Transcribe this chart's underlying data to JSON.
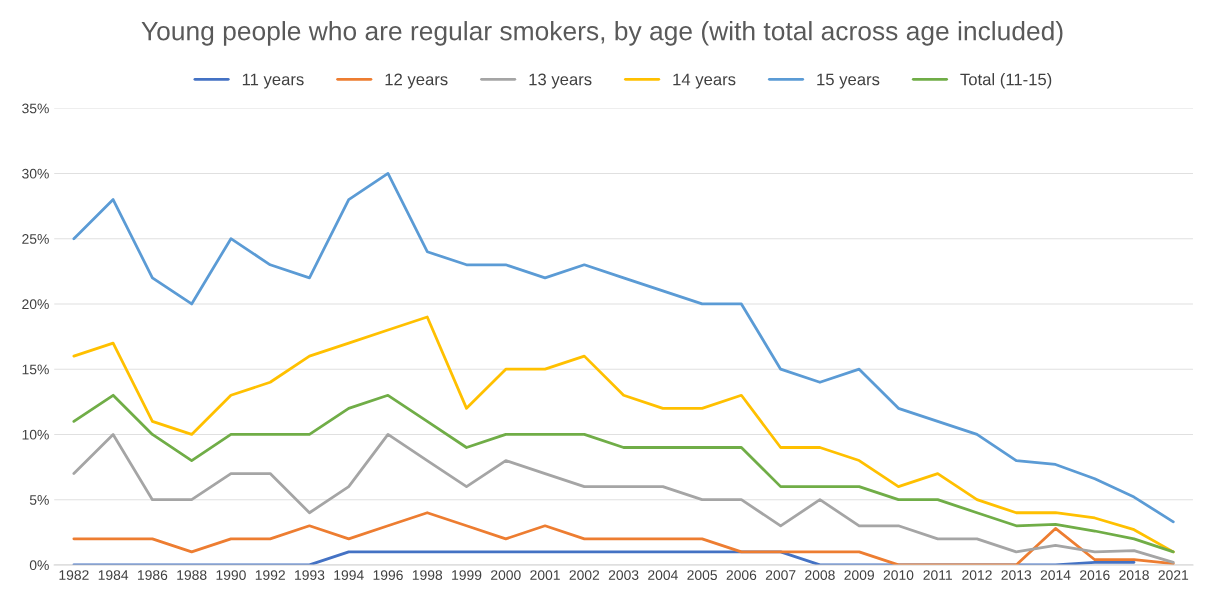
{
  "chart_data": {
    "type": "line",
    "title": "Young people who are regular smokers, by age (with total across age included)",
    "categories": [
      "1982",
      "1984",
      "1986",
      "1988",
      "1990",
      "1992",
      "1993",
      "1994",
      "1996",
      "1998",
      "1999",
      "2000",
      "2001",
      "2002",
      "2003",
      "2004",
      "2005",
      "2006",
      "2007",
      "2008",
      "2009",
      "2010",
      "2011",
      "2012",
      "2013",
      "2014",
      "2016",
      "2018",
      "2021"
    ],
    "series": [
      {
        "name": "11 years",
        "color": "#4472c4",
        "values": [
          0,
          0,
          0,
          0,
          0,
          0,
          0,
          1,
          1,
          1,
          1,
          1,
          1,
          1,
          1,
          1,
          1,
          1,
          1,
          0,
          0,
          0,
          0,
          0,
          0,
          0,
          0.2,
          0.2,
          null
        ]
      },
      {
        "name": "12 years",
        "color": "#ed7d31",
        "values": [
          2,
          2,
          2,
          1,
          2,
          2,
          3,
          2,
          3,
          4,
          3,
          2,
          3,
          2,
          2,
          2,
          2,
          1,
          1,
          1,
          1,
          0,
          0,
          0,
          0,
          2.8,
          0.4,
          0.4,
          0.1
        ]
      },
      {
        "name": "13 years",
        "color": "#a5a5a5",
        "values": [
          7,
          10,
          5,
          5,
          7,
          7,
          4,
          6,
          10,
          8,
          6,
          8,
          7,
          6,
          6,
          6,
          5,
          5,
          3,
          5,
          3,
          3,
          2,
          2,
          1,
          1.5,
          1,
          1.1,
          0.2
        ]
      },
      {
        "name": "14 years",
        "color": "#ffc000",
        "values": [
          16,
          17,
          11,
          10,
          13,
          14,
          16,
          17,
          18,
          19,
          12,
          15,
          15,
          16,
          13,
          12,
          12,
          13,
          9,
          9,
          8,
          6,
          7,
          5,
          4,
          4,
          3.6,
          2.7,
          1
        ]
      },
      {
        "name": "15 years",
        "color": "#5b9bd5",
        "values": [
          25,
          28,
          22,
          20,
          25,
          23,
          22,
          28,
          30,
          24,
          23,
          23,
          22,
          23,
          22,
          21,
          20,
          20,
          15,
          14,
          15,
          12,
          11,
          10,
          8,
          7.7,
          6.6,
          5.2,
          3.3
        ]
      },
      {
        "name": "Total (11-15)",
        "color": "#70ad47",
        "values": [
          11,
          13,
          10,
          8,
          10,
          10,
          10,
          12,
          13,
          11,
          9,
          10,
          10,
          10,
          9,
          9,
          9,
          9,
          6,
          6,
          6,
          5,
          5,
          4,
          3,
          3.1,
          2.6,
          2,
          1
        ]
      }
    ],
    "ylim": [
      0,
      35
    ],
    "yticks": [
      {
        "value": 0,
        "label": "0%"
      },
      {
        "value": 5,
        "label": "5%"
      },
      {
        "value": 10,
        "label": "10%"
      },
      {
        "value": 15,
        "label": "15%"
      },
      {
        "value": 20,
        "label": "20%"
      },
      {
        "value": 25,
        "label": "25%"
      },
      {
        "value": 30,
        "label": "30%"
      },
      {
        "value": 35,
        "label": "35%"
      }
    ],
    "grid": "y",
    "legend": "top",
    "marker": "none",
    "line_style": "solid"
  }
}
